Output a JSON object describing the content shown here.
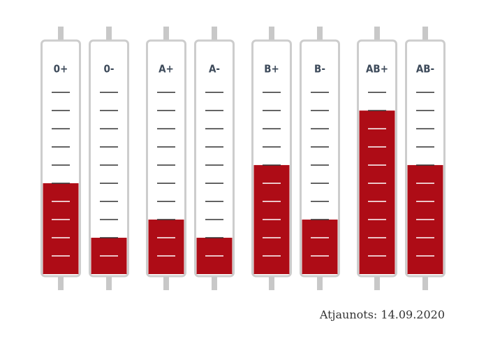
{
  "chart_data": {
    "type": "tube",
    "categories": [
      "0+",
      "0-",
      "A+",
      "A-",
      "B+",
      "B-",
      "AB+",
      "AB-"
    ],
    "values": [
      5,
      2,
      3,
      2,
      6,
      3,
      9,
      6
    ],
    "color": "#ae0c16",
    "ylim": [
      0,
      12.7
    ],
    "yticks": [
      1,
      2,
      3,
      4,
      5,
      6,
      7,
      8,
      9,
      10
    ],
    "footer": "Atjaunots: 14.09.2020"
  }
}
